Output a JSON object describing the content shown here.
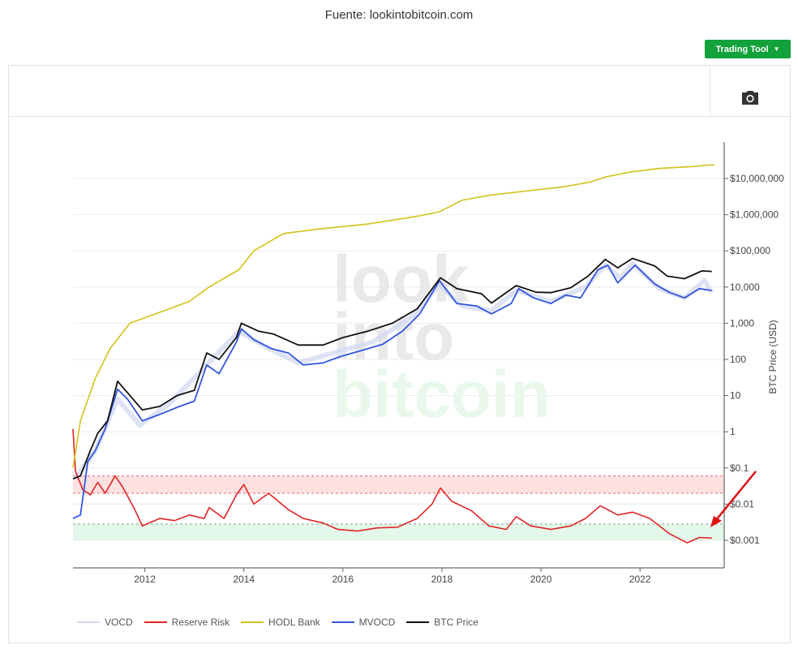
{
  "source_text": "Fuente: lookintobitcoin.com",
  "trading_tool_label": "Trading Tool",
  "watermark": [
    "look",
    "into",
    "bitcoin"
  ],
  "chart_data": {
    "type": "line",
    "ylabel": "BTC Price (USD)",
    "y_scale": "log",
    "ylim": [
      0.0006,
      60000000
    ],
    "xlim": [
      2010.55,
      2023.7
    ],
    "x_ticks": [
      2012,
      2014,
      2016,
      2018,
      2020,
      2022
    ],
    "x_tick_labels": [
      "2012",
      "2014",
      "2016",
      "2018",
      "2020",
      "2022"
    ],
    "y_ticks": [
      0.001,
      0.01,
      0.1,
      1,
      10,
      100,
      1000,
      10000,
      100000,
      1000000,
      10000000
    ],
    "y_tick_labels": [
      "$0.001",
      "$0.01",
      "$0.1",
      "1",
      "10",
      "100",
      "1,000",
      "10,000",
      "$100,000",
      "$1,000,000",
      "$10,000,000"
    ],
    "bands": [
      {
        "from": 0.02,
        "to": 0.06,
        "color": "#fde0e0"
      },
      {
        "from": 0.001,
        "to": 0.0028,
        "color": "#e3f7ea"
      }
    ],
    "series": [
      {
        "name": "VOCD",
        "color": "#d3d8f2",
        "points": [
          [
            2010.6,
            0.05
          ],
          [
            2011.0,
            0.3
          ],
          [
            2011.45,
            8
          ],
          [
            2011.9,
            1.5
          ],
          [
            2012.5,
            6
          ],
          [
            2013.2,
            60
          ],
          [
            2013.9,
            600
          ],
          [
            2014.5,
            200
          ],
          [
            2015.1,
            80
          ],
          [
            2015.8,
            150
          ],
          [
            2016.6,
            300
          ],
          [
            2017.4,
            1500
          ],
          [
            2017.95,
            12000
          ],
          [
            2018.4,
            3000
          ],
          [
            2019.0,
            2200
          ],
          [
            2019.5,
            8000
          ],
          [
            2020.2,
            4000
          ],
          [
            2020.9,
            10000
          ],
          [
            2021.3,
            40000
          ],
          [
            2021.6,
            18000
          ],
          [
            2021.85,
            45000
          ],
          [
            2022.4,
            9000
          ],
          [
            2022.9,
            5000
          ],
          [
            2023.3,
            15000
          ],
          [
            2023.45,
            7000
          ]
        ]
      },
      {
        "name": "Reserve Risk",
        "color": "#e02424",
        "points": [
          [
            2010.55,
            1.2
          ],
          [
            2010.6,
            0.08
          ],
          [
            2010.75,
            0.025
          ],
          [
            2010.9,
            0.018
          ],
          [
            2011.05,
            0.04
          ],
          [
            2011.2,
            0.02
          ],
          [
            2011.4,
            0.06
          ],
          [
            2011.55,
            0.03
          ],
          [
            2011.8,
            0.007
          ],
          [
            2011.95,
            0.0025
          ],
          [
            2012.3,
            0.004
          ],
          [
            2012.6,
            0.0035
          ],
          [
            2012.9,
            0.005
          ],
          [
            2013.2,
            0.004
          ],
          [
            2013.3,
            0.008
          ],
          [
            2013.6,
            0.004
          ],
          [
            2013.85,
            0.018
          ],
          [
            2014.0,
            0.035
          ],
          [
            2014.2,
            0.01
          ],
          [
            2014.5,
            0.02
          ],
          [
            2014.9,
            0.007
          ],
          [
            2015.2,
            0.004
          ],
          [
            2015.6,
            0.003
          ],
          [
            2015.9,
            0.002
          ],
          [
            2016.3,
            0.0018
          ],
          [
            2016.7,
            0.0022
          ],
          [
            2017.1,
            0.0023
          ],
          [
            2017.5,
            0.004
          ],
          [
            2017.8,
            0.01
          ],
          [
            2017.97,
            0.028
          ],
          [
            2018.2,
            0.012
          ],
          [
            2018.6,
            0.0065
          ],
          [
            2018.95,
            0.0025
          ],
          [
            2019.3,
            0.002
          ],
          [
            2019.5,
            0.0045
          ],
          [
            2019.8,
            0.0025
          ],
          [
            2020.2,
            0.002
          ],
          [
            2020.6,
            0.0025
          ],
          [
            2020.9,
            0.004
          ],
          [
            2021.2,
            0.009
          ],
          [
            2021.55,
            0.005
          ],
          [
            2021.85,
            0.006
          ],
          [
            2022.2,
            0.004
          ],
          [
            2022.6,
            0.0015
          ],
          [
            2022.95,
            0.00085
          ],
          [
            2023.2,
            0.0012
          ],
          [
            2023.45,
            0.00115
          ]
        ]
      },
      {
        "name": "HODL Bank",
        "color": "#d2c21a",
        "points": [
          [
            2010.55,
            0.1
          ],
          [
            2010.7,
            2
          ],
          [
            2011.0,
            30
          ],
          [
            2011.3,
            200
          ],
          [
            2011.7,
            1000
          ],
          [
            2012.3,
            2000
          ],
          [
            2012.9,
            4000
          ],
          [
            2013.3,
            10000
          ],
          [
            2013.9,
            30000
          ],
          [
            2014.2,
            100000
          ],
          [
            2014.8,
            300000
          ],
          [
            2015.5,
            400000
          ],
          [
            2016.5,
            550000
          ],
          [
            2017.5,
            900000
          ],
          [
            2017.95,
            1200000
          ],
          [
            2018.4,
            2500000
          ],
          [
            2019.0,
            3500000
          ],
          [
            2019.7,
            4500000
          ],
          [
            2020.5,
            6000000
          ],
          [
            2021.0,
            8000000
          ],
          [
            2021.3,
            11000000
          ],
          [
            2021.8,
            15000000
          ],
          [
            2022.4,
            19000000
          ],
          [
            2023.0,
            21000000
          ],
          [
            2023.5,
            24000000
          ]
        ]
      },
      {
        "name": "MVOCD",
        "color": "#3355dd",
        "points": [
          [
            2010.55,
            0.004
          ],
          [
            2010.7,
            0.005
          ],
          [
            2010.85,
            0.15
          ],
          [
            2011.0,
            0.3
          ],
          [
            2011.2,
            1.2
          ],
          [
            2011.45,
            15
          ],
          [
            2011.65,
            8
          ],
          [
            2011.95,
            2
          ],
          [
            2012.3,
            3
          ],
          [
            2012.7,
            5
          ],
          [
            2013.0,
            7
          ],
          [
            2013.25,
            70
          ],
          [
            2013.5,
            40
          ],
          [
            2013.85,
            300
          ],
          [
            2013.95,
            700
          ],
          [
            2014.2,
            350
          ],
          [
            2014.55,
            200
          ],
          [
            2014.9,
            150
          ],
          [
            2015.2,
            70
          ],
          [
            2015.6,
            80
          ],
          [
            2015.95,
            120
          ],
          [
            2016.4,
            180
          ],
          [
            2016.8,
            260
          ],
          [
            2017.2,
            600
          ],
          [
            2017.55,
            1800
          ],
          [
            2017.95,
            15000
          ],
          [
            2018.3,
            3500
          ],
          [
            2018.7,
            3000
          ],
          [
            2019.0,
            1800
          ],
          [
            2019.4,
            3500
          ],
          [
            2019.55,
            9000
          ],
          [
            2019.85,
            5000
          ],
          [
            2020.2,
            3500
          ],
          [
            2020.5,
            6000
          ],
          [
            2020.8,
            5000
          ],
          [
            2021.15,
            30000
          ],
          [
            2021.35,
            40000
          ],
          [
            2021.55,
            13000
          ],
          [
            2021.9,
            40000
          ],
          [
            2022.3,
            12000
          ],
          [
            2022.6,
            7000
          ],
          [
            2022.9,
            5000
          ],
          [
            2023.2,
            9000
          ],
          [
            2023.45,
            8000
          ]
        ]
      },
      {
        "name": "BTC Price",
        "color": "#111111",
        "points": [
          [
            2010.55,
            0.05
          ],
          [
            2010.7,
            0.06
          ],
          [
            2010.9,
            0.3
          ],
          [
            2011.05,
            0.9
          ],
          [
            2011.25,
            2
          ],
          [
            2011.45,
            25
          ],
          [
            2011.65,
            12
          ],
          [
            2011.95,
            4
          ],
          [
            2012.3,
            5
          ],
          [
            2012.65,
            10
          ],
          [
            2013.0,
            14
          ],
          [
            2013.25,
            150
          ],
          [
            2013.5,
            100
          ],
          [
            2013.85,
            400
          ],
          [
            2013.95,
            1000
          ],
          [
            2014.3,
            600
          ],
          [
            2014.6,
            500
          ],
          [
            2015.1,
            250
          ],
          [
            2015.6,
            250
          ],
          [
            2016.0,
            400
          ],
          [
            2016.5,
            600
          ],
          [
            2017.0,
            1000
          ],
          [
            2017.5,
            2500
          ],
          [
            2017.97,
            18000
          ],
          [
            2018.3,
            9000
          ],
          [
            2018.8,
            6500
          ],
          [
            2019.0,
            3600
          ],
          [
            2019.5,
            11000
          ],
          [
            2019.9,
            7200
          ],
          [
            2020.2,
            7000
          ],
          [
            2020.6,
            9500
          ],
          [
            2020.95,
            20000
          ],
          [
            2021.3,
            58000
          ],
          [
            2021.55,
            34000
          ],
          [
            2021.85,
            62000
          ],
          [
            2022.3,
            38000
          ],
          [
            2022.55,
            20000
          ],
          [
            2022.9,
            17000
          ],
          [
            2023.25,
            28000
          ],
          [
            2023.45,
            27000
          ]
        ]
      }
    ],
    "legend": [
      "VOCD",
      "Reserve Risk",
      "HODL Bank",
      "MVOCD",
      "BTC Price"
    ]
  }
}
